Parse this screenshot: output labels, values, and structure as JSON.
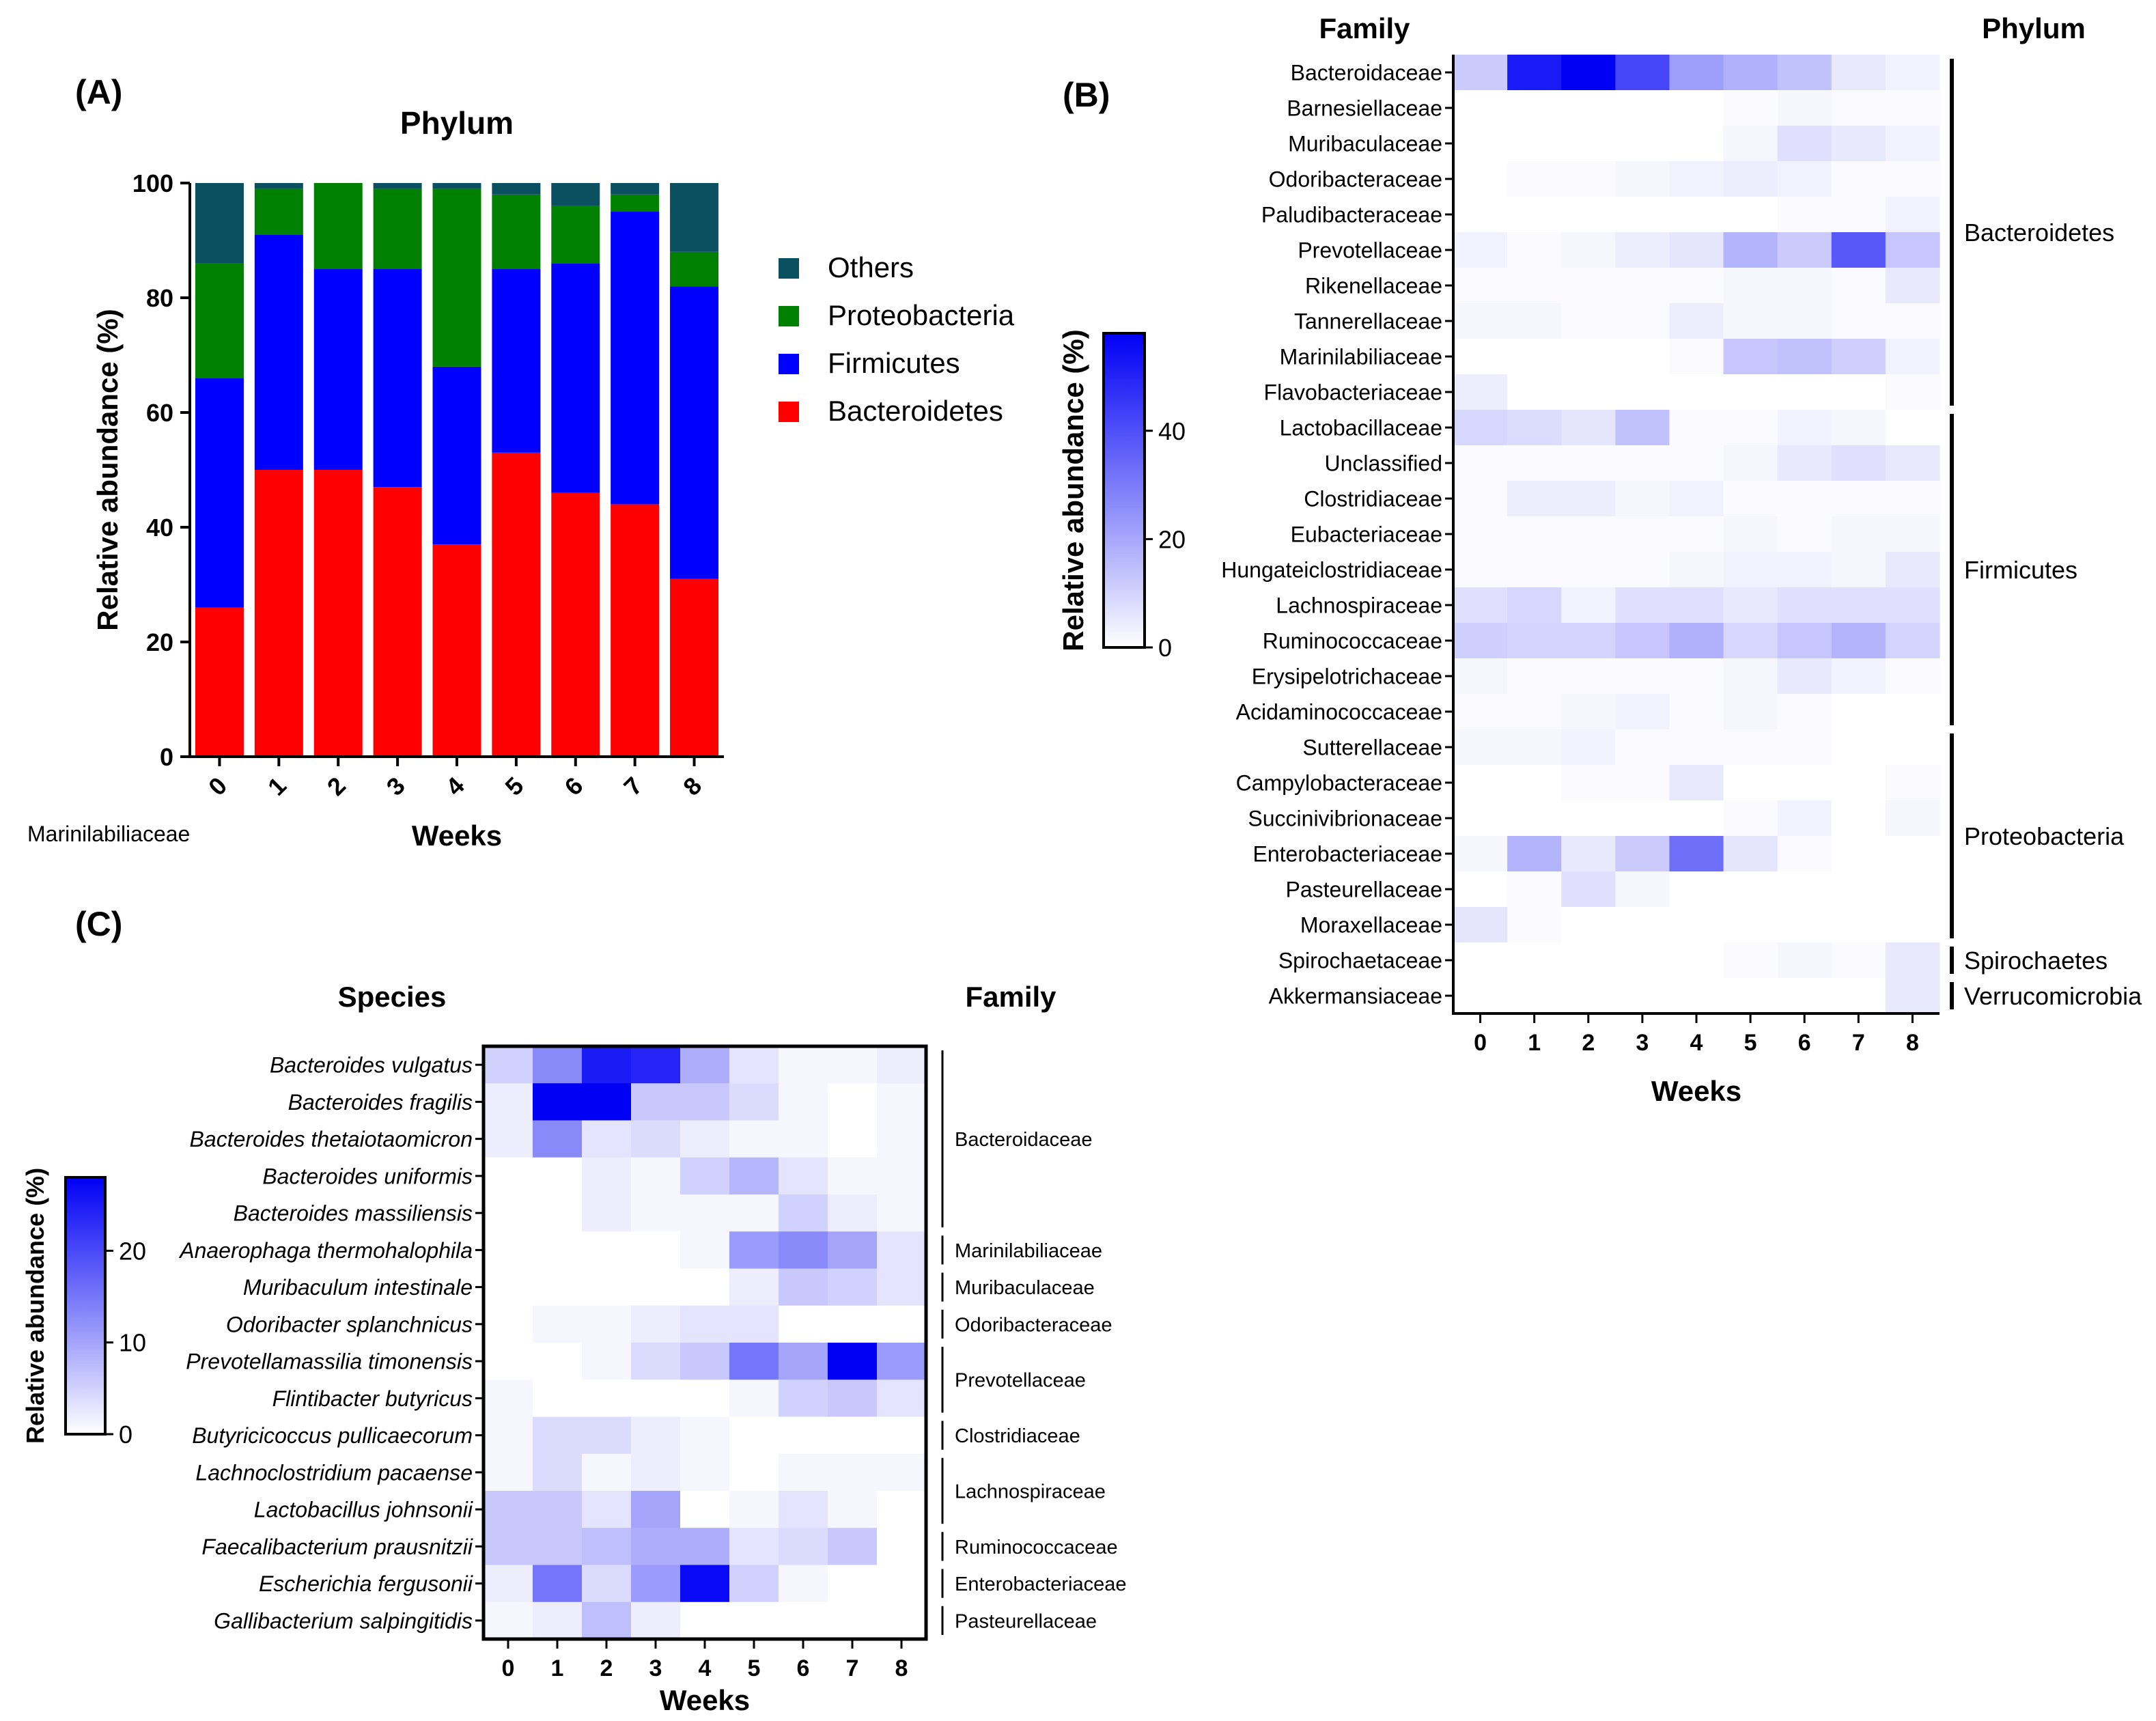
{
  "chart_data": [
    {
      "id": "A",
      "panel_label": "(A)",
      "type": "bar",
      "stacked": true,
      "title": "Phylum",
      "xlabel": "Weeks",
      "ylabel": "Relative abundance (%)",
      "ylim": [
        0,
        100
      ],
      "yticks": [
        0,
        20,
        40,
        60,
        80,
        100
      ],
      "categories": [
        "0",
        "1",
        "2",
        "3",
        "4",
        "5",
        "6",
        "7",
        "8"
      ],
      "series": [
        {
          "name": "Bacteroidetes",
          "color": "#ff0000",
          "values": [
            26,
            50,
            50,
            47,
            37,
            53,
            46,
            44,
            31
          ]
        },
        {
          "name": "Firmicutes",
          "color": "#0000ff",
          "values": [
            40,
            41,
            35,
            38,
            31,
            32,
            40,
            51,
            51
          ]
        },
        {
          "name": "Proteobacteria",
          "color": "#008000",
          "values": [
            20,
            8,
            15,
            14,
            31,
            13,
            10,
            3,
            6
          ]
        },
        {
          "name": "Others",
          "color": "#0a5060",
          "values": [
            14,
            1,
            0,
            1,
            1,
            2,
            4,
            2,
            12
          ]
        }
      ],
      "legend_order": [
        "Others",
        "Proteobacteria",
        "Firmicutes",
        "Bacteroidetes"
      ],
      "legend_position": "right",
      "stray_label": "Marinilabiliaceae"
    },
    {
      "id": "B",
      "panel_label": "(B)",
      "type": "heatmap",
      "row_header": "Family",
      "group_header": "Phylum",
      "xlabel": "Weeks",
      "colorbar_label": "Relative abundance (%)",
      "colorbar_max": 58,
      "colorbar_ticks": [
        0,
        20,
        40
      ],
      "italic_rows": false,
      "x": [
        "0",
        "1",
        "2",
        "3",
        "4",
        "5",
        "6",
        "7",
        "8"
      ],
      "rows": [
        "Bacteroidaceae",
        "Barnesiellaceae",
        "Muribaculaceae",
        "Odoribacteraceae",
        "Paludibacteraceae",
        "Prevotellaceae",
        "Rikenellaceae",
        "Tannerellaceae",
        "Marinilabiliaceae",
        "Flavobacteriaceae",
        "Lactobacillaceae",
        "Unclassified",
        "Clostridiaceae",
        "Eubacteriaceae",
        "Hungateiclostridiaceae",
        "Lachnospiraceae",
        "Ruminococcaceae",
        "Erysipelotrichaceae",
        "Acidaminococcaceae",
        "Sutterellaceae",
        "Campylobacteraceae",
        "Succinivibrionaceae",
        "Enterobacteriaceae",
        "Pasteurellaceae",
        "Moraxellaceae",
        "Spirochaetaceae",
        "Akkermansiaceae"
      ],
      "values": [
        [
          12,
          52,
          58,
          42,
          22,
          18,
          14,
          5,
          3
        ],
        [
          0,
          0,
          0,
          0,
          0,
          1,
          2,
          1,
          1
        ],
        [
          0,
          0,
          0,
          0,
          0,
          2,
          7,
          5,
          3
        ],
        [
          0,
          1,
          1,
          2,
          3,
          4,
          3,
          1,
          1
        ],
        [
          0,
          0,
          0,
          0,
          0,
          0,
          1,
          1,
          3
        ],
        [
          3,
          1,
          2,
          4,
          6,
          17,
          12,
          38,
          13
        ],
        [
          1,
          1,
          1,
          1,
          1,
          2,
          2,
          1,
          5
        ],
        [
          2,
          2,
          1,
          1,
          4,
          2,
          2,
          1,
          1
        ],
        [
          0,
          0,
          0,
          0,
          1,
          13,
          14,
          11,
          3
        ],
        [
          4,
          0,
          0,
          0,
          0,
          0,
          0,
          0,
          1
        ],
        [
          9,
          8,
          6,
          14,
          1,
          1,
          3,
          2,
          0
        ],
        [
          1,
          1,
          1,
          1,
          1,
          2,
          5,
          7,
          5
        ],
        [
          1,
          4,
          4,
          2,
          3,
          1,
          1,
          1,
          1
        ],
        [
          1,
          1,
          1,
          1,
          1,
          2,
          1,
          2,
          2
        ],
        [
          1,
          1,
          1,
          1,
          2,
          3,
          3,
          2,
          5
        ],
        [
          7,
          9,
          3,
          7,
          7,
          5,
          7,
          7,
          7
        ],
        [
          11,
          10,
          10,
          13,
          18,
          9,
          13,
          17,
          10
        ],
        [
          2,
          1,
          1,
          1,
          1,
          2,
          5,
          3,
          1
        ],
        [
          1,
          1,
          2,
          3,
          1,
          2,
          1,
          0,
          0
        ],
        [
          2,
          2,
          3,
          1,
          1,
          1,
          1,
          0,
          0
        ],
        [
          0,
          0,
          1,
          1,
          5,
          0,
          0,
          0,
          1
        ],
        [
          0,
          0,
          0,
          0,
          0,
          1,
          3,
          0,
          2
        ],
        [
          2,
          17,
          5,
          12,
          33,
          6,
          1,
          0,
          0
        ],
        [
          0,
          1,
          7,
          2,
          0,
          0,
          0,
          0,
          0
        ],
        [
          6,
          1,
          0,
          0,
          0,
          0,
          0,
          0,
          0
        ],
        [
          0,
          0,
          0,
          0,
          0,
          1,
          2,
          1,
          5
        ],
        [
          0,
          0,
          0,
          0,
          0,
          0,
          0,
          0,
          5
        ]
      ],
      "groups": [
        {
          "label": "Bacteroidetes",
          "from": 0,
          "to": 9
        },
        {
          "label": "Firmicutes",
          "from": 10,
          "to": 18
        },
        {
          "label": "Proteobacteria",
          "from": 19,
          "to": 24
        },
        {
          "label": "Spirochaetes",
          "from": 25,
          "to": 25
        },
        {
          "label": "Verrucomicrobia",
          "from": 26,
          "to": 26
        }
      ]
    },
    {
      "id": "C",
      "panel_label": "(C)",
      "type": "heatmap",
      "row_header": "Species",
      "group_header": "Family",
      "xlabel": "Weeks",
      "colorbar_label": "Relative abundance (%)",
      "colorbar_max": 28,
      "colorbar_ticks": [
        0,
        10,
        20
      ],
      "italic_rows": true,
      "x": [
        "0",
        "1",
        "2",
        "3",
        "4",
        "5",
        "6",
        "7",
        "8"
      ],
      "rows": [
        "Bacteroides vulgatus",
        "Bacteroides fragilis",
        "Bacteroides thetaiotaomicron",
        "Bacteroides uniformis",
        "Bacteroides massiliensis",
        "Anaerophaga thermohalophila",
        "Muribaculum intestinale",
        "Odoribacter splanchnicus",
        "Prevotellamassilia timonensis",
        "Flintibacter butyricus",
        "Butyricicoccus pullicaecorum",
        "Lachnoclostridium pacaense",
        "Lactobacillus johnsonii",
        "Faecalibacterium prausnitzii",
        "Escherichia fergusonii",
        "Gallibacterium salpingitidis"
      ],
      "values": [
        [
          5,
          13,
          25,
          24,
          9,
          3,
          1,
          1,
          2
        ],
        [
          2,
          28,
          28,
          6,
          6,
          4,
          1,
          0,
          1
        ],
        [
          2,
          13,
          3,
          4,
          2,
          1,
          1,
          0,
          1
        ],
        [
          0,
          0,
          2,
          1,
          5,
          8,
          3,
          1,
          1
        ],
        [
          0,
          0,
          2,
          1,
          1,
          1,
          5,
          2,
          1
        ],
        [
          0,
          0,
          0,
          0,
          1,
          11,
          13,
          10,
          3
        ],
        [
          0,
          0,
          0,
          0,
          0,
          2,
          6,
          5,
          3
        ],
        [
          0,
          1,
          1,
          2,
          3,
          3,
          0,
          0,
          0
        ],
        [
          0,
          0,
          1,
          4,
          6,
          15,
          10,
          28,
          11
        ],
        [
          1,
          0,
          0,
          0,
          0,
          1,
          5,
          6,
          3
        ],
        [
          1,
          4,
          4,
          2,
          1,
          0,
          0,
          0,
          0
        ],
        [
          1,
          4,
          1,
          2,
          1,
          0,
          1,
          1,
          1
        ],
        [
          6,
          6,
          3,
          10,
          0,
          1,
          3,
          1,
          0
        ],
        [
          6,
          6,
          7,
          9,
          9,
          3,
          4,
          6,
          0
        ],
        [
          2,
          15,
          4,
          11,
          27,
          5,
          1,
          0,
          0
        ],
        [
          1,
          2,
          7,
          2,
          0,
          0,
          0,
          0,
          0
        ]
      ],
      "groups": [
        {
          "label": "Bacteroidaceae",
          "from": 0,
          "to": 4
        },
        {
          "label": "Marinilabiliaceae",
          "from": 5,
          "to": 5
        },
        {
          "label": "Muribaculaceae",
          "from": 6,
          "to": 6
        },
        {
          "label": "Odoribacteraceae",
          "from": 7,
          "to": 7
        },
        {
          "label": "Prevotellaceae",
          "from": 8,
          "to": 9
        },
        {
          "label": "Clostridiaceae",
          "from": 10,
          "to": 10
        },
        {
          "label": "Lachnospiraceae",
          "from": 11,
          "to": 12
        },
        {
          "label": "Ruminococcaceae",
          "from": 13,
          "to": 13
        },
        {
          "label": "Enterobacteriaceae",
          "from": 14,
          "to": 14
        },
        {
          "label": "Pasteurellaceae",
          "from": 15,
          "to": 15
        }
      ]
    }
  ]
}
